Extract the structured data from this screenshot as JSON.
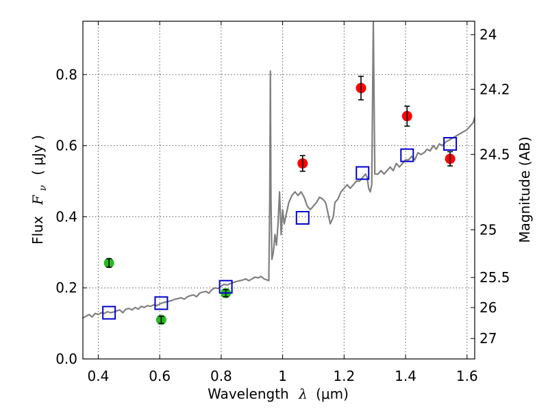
{
  "chart_data": {
    "type": "scatter",
    "xlabel_prefix": "Wavelength",
    "xlabel_symbol": "λ",
    "xlabel_unit": "(μm)",
    "ylabel_prefix": "Flux",
    "ylabel_symbol": "F",
    "ylabel_subscript": "ν",
    "ylabel_unit": "( μJy )",
    "right_label": "Magnitude (AB)",
    "xlim": [
      0.35,
      1.625
    ],
    "ylim": [
      0.0,
      0.95
    ],
    "x_ticks": [
      0.4,
      0.6,
      0.8,
      1.0,
      1.2,
      1.4,
      1.6
    ],
    "x_tick_labels": [
      "0.4",
      "0.6",
      "0.8",
      "1",
      "1.2",
      "1.4",
      "1.6"
    ],
    "y_ticks": [
      0.0,
      0.2,
      0.4,
      0.6,
      0.8
    ],
    "y_tick_labels": [
      "0.0",
      "0.2",
      "0.4",
      "0.6",
      "0.8"
    ],
    "mag_ticks": [
      24,
      24.2,
      24.5,
      25,
      25.5,
      26,
      27
    ],
    "mag_tick_labels": [
      "24",
      "24.2",
      "24.5",
      "25",
      "25.5",
      "26",
      "27"
    ],
    "grid": true,
    "colors": {
      "model": "#7f7f7f",
      "red": "#ff0000",
      "green": "#22bb22",
      "blue": "#0000cc"
    },
    "series": [
      {
        "name": "model spectrum",
        "kind": "line",
        "x": [
          0.35,
          0.36,
          0.37,
          0.38,
          0.39,
          0.4,
          0.41,
          0.42,
          0.43,
          0.44,
          0.45,
          0.46,
          0.47,
          0.48,
          0.49,
          0.5,
          0.51,
          0.52,
          0.53,
          0.54,
          0.55,
          0.56,
          0.57,
          0.58,
          0.59,
          0.6,
          0.61,
          0.62,
          0.63,
          0.64,
          0.65,
          0.66,
          0.67,
          0.68,
          0.69,
          0.7,
          0.71,
          0.72,
          0.73,
          0.74,
          0.75,
          0.76,
          0.77,
          0.78,
          0.79,
          0.8,
          0.81,
          0.82,
          0.83,
          0.84,
          0.85,
          0.86,
          0.87,
          0.88,
          0.89,
          0.9,
          0.91,
          0.92,
          0.93,
          0.94,
          0.95,
          0.955,
          0.958,
          0.96,
          0.962,
          0.965,
          0.97,
          0.975,
          0.98,
          0.985,
          0.99,
          0.995,
          1.0,
          1.005,
          1.01,
          1.02,
          1.03,
          1.04,
          1.05,
          1.06,
          1.07,
          1.08,
          1.09,
          1.1,
          1.11,
          1.12,
          1.13,
          1.14,
          1.15,
          1.155,
          1.16,
          1.165,
          1.17,
          1.18,
          1.19,
          1.2,
          1.21,
          1.22,
          1.23,
          1.24,
          1.25,
          1.26,
          1.27,
          1.275,
          1.28,
          1.285,
          1.29,
          1.295,
          1.3,
          1.31,
          1.32,
          1.33,
          1.34,
          1.35,
          1.36,
          1.37,
          1.38,
          1.39,
          1.4,
          1.41,
          1.42,
          1.43,
          1.44,
          1.45,
          1.46,
          1.47,
          1.48,
          1.49,
          1.5,
          1.51,
          1.52,
          1.53,
          1.54,
          1.55,
          1.56,
          1.57,
          1.58,
          1.59,
          1.6,
          1.61,
          1.62,
          1.625
        ],
        "y": [
          0.115,
          0.12,
          0.125,
          0.118,
          0.128,
          0.125,
          0.13,
          0.128,
          0.133,
          0.13,
          0.132,
          0.135,
          0.138,
          0.13,
          0.14,
          0.142,
          0.138,
          0.145,
          0.14,
          0.148,
          0.145,
          0.15,
          0.148,
          0.152,
          0.15,
          0.155,
          0.158,
          0.16,
          0.162,
          0.165,
          0.168,
          0.17,
          0.172,
          0.168,
          0.175,
          0.178,
          0.18,
          0.175,
          0.185,
          0.188,
          0.19,
          0.185,
          0.195,
          0.2,
          0.198,
          0.205,
          0.21,
          0.208,
          0.212,
          0.215,
          0.218,
          0.22,
          0.222,
          0.225,
          0.22,
          0.225,
          0.23,
          0.228,
          0.232,
          0.225,
          0.222,
          0.22,
          0.45,
          0.81,
          0.45,
          0.28,
          0.3,
          0.35,
          0.32,
          0.38,
          0.47,
          0.35,
          0.42,
          0.38,
          0.4,
          0.44,
          0.46,
          0.47,
          0.46,
          0.47,
          0.455,
          0.43,
          0.42,
          0.43,
          0.44,
          0.455,
          0.45,
          0.44,
          0.4,
          0.38,
          0.39,
          0.4,
          0.44,
          0.45,
          0.47,
          0.48,
          0.49,
          0.48,
          0.49,
          0.5,
          0.5,
          0.51,
          0.52,
          0.51,
          0.48,
          0.47,
          0.49,
          0.95,
          0.52,
          0.52,
          0.53,
          0.52,
          0.53,
          0.54,
          0.53,
          0.55,
          0.54,
          0.55,
          0.56,
          0.56,
          0.57,
          0.56,
          0.58,
          0.575,
          0.58,
          0.59,
          0.585,
          0.6,
          0.59,
          0.605,
          0.6,
          0.61,
          0.615,
          0.62,
          0.625,
          0.63,
          0.635,
          0.64,
          0.645,
          0.655,
          0.665,
          0.68
        ]
      },
      {
        "name": "red points",
        "kind": "point",
        "x": [
          1.065,
          1.255,
          1.405,
          1.545
        ],
        "y": [
          0.55,
          0.762,
          0.683,
          0.563
        ],
        "err": [
          0.022,
          0.033,
          0.028,
          0.02
        ]
      },
      {
        "name": "green points",
        "kind": "point",
        "x": [
          0.435,
          0.605,
          0.815
        ],
        "y": [
          0.27,
          0.11,
          0.185
        ],
        "err": [
          0.012,
          0.01,
          0.01
        ]
      },
      {
        "name": "blue squares",
        "kind": "square",
        "x": [
          0.435,
          0.605,
          0.815,
          1.065,
          1.26,
          1.405,
          1.545
        ],
        "y": [
          0.13,
          0.157,
          0.203,
          0.397,
          0.523,
          0.573,
          0.605
        ]
      }
    ]
  }
}
